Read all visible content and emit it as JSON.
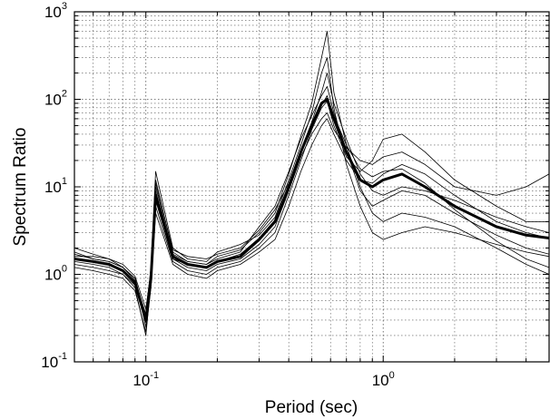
{
  "chart_data": {
    "type": "line",
    "title": "",
    "xlabel": "Period (sec)",
    "ylabel": "Spectrum Ratio",
    "xscale": "log",
    "yscale": "log",
    "xlim": [
      0.05,
      5
    ],
    "ylim": [
      0.1,
      1000
    ],
    "grid": true,
    "legend": "none",
    "x_ticks": [
      {
        "base": "10",
        "exp": "-1",
        "value": 0.1
      },
      {
        "base": "10",
        "exp": "0",
        "value": 1
      }
    ],
    "y_ticks": [
      {
        "base": "10",
        "exp": "-1",
        "value": 0.1
      },
      {
        "base": "10",
        "exp": "0",
        "value": 1
      },
      {
        "base": "10",
        "exp": "1",
        "value": 10
      },
      {
        "base": "10",
        "exp": "2",
        "value": 100
      },
      {
        "base": "10",
        "exp": "3",
        "value": 1000
      }
    ],
    "mean_series": {
      "style": "thick",
      "x": [
        0.05,
        0.06,
        0.07,
        0.08,
        0.09,
        0.1,
        0.105,
        0.11,
        0.13,
        0.15,
        0.18,
        0.2,
        0.25,
        0.3,
        0.35,
        0.4,
        0.45,
        0.5,
        0.55,
        0.58,
        0.62,
        0.7,
        0.8,
        0.9,
        1.0,
        1.2,
        1.5,
        2.0,
        3.0,
        4.0,
        5.0
      ],
      "y": [
        1.5,
        1.4,
        1.3,
        1.1,
        0.8,
        0.3,
        0.9,
        8.0,
        1.6,
        1.3,
        1.2,
        1.4,
        1.6,
        2.5,
        4.0,
        10.0,
        25.0,
        50.0,
        90.0,
        100.0,
        60.0,
        25.0,
        12.0,
        10.0,
        12.0,
        14.0,
        10.0,
        6.0,
        3.5,
        2.8,
        2.6
      ]
    },
    "individual_series_y": [
      [
        1.8,
        1.5,
        1.4,
        1.2,
        0.9,
        0.25,
        1.0,
        12.0,
        1.8,
        1.4,
        1.3,
        1.6,
        1.9,
        3.0,
        5.0,
        14.0,
        38.0,
        90.0,
        300.0,
        600.0,
        120.0,
        30.0,
        10.0,
        5.0,
        4.0,
        5.0,
        4.5,
        3.5,
        2.0,
        1.3,
        1.0
      ],
      [
        1.3,
        1.2,
        1.1,
        1.0,
        0.7,
        0.2,
        0.8,
        6.0,
        1.4,
        1.1,
        1.0,
        1.2,
        1.4,
        2.0,
        3.0,
        8.0,
        20.0,
        45.0,
        80.0,
        95.0,
        50.0,
        22.0,
        15.0,
        20.0,
        35.0,
        40.0,
        25.0,
        12.0,
        6.0,
        4.0,
        4.0
      ],
      [
        1.6,
        1.6,
        1.5,
        1.2,
        0.85,
        0.35,
        1.2,
        15.0,
        2.0,
        1.5,
        1.4,
        1.8,
        2.2,
        2.8,
        4.5,
        12.0,
        30.0,
        70.0,
        200.0,
        300.0,
        80.0,
        18.0,
        6.0,
        3.0,
        2.5,
        3.0,
        3.5,
        3.0,
        2.2,
        1.8,
        1.6
      ],
      [
        1.4,
        1.3,
        1.2,
        1.0,
        0.75,
        0.28,
        0.9,
        9.0,
        1.5,
        1.2,
        1.1,
        1.3,
        1.5,
        2.2,
        3.5,
        9.0,
        22.0,
        40.0,
        60.0,
        70.0,
        45.0,
        28.0,
        20.0,
        18.0,
        22.0,
        25.0,
        18.0,
        10.0,
        8.0,
        10.0,
        14.0
      ],
      [
        2.0,
        1.7,
        1.5,
        1.3,
        0.95,
        0.4,
        1.1,
        10.0,
        1.7,
        1.4,
        1.3,
        1.5,
        1.8,
        3.5,
        6.0,
        15.0,
        35.0,
        65.0,
        110.0,
        140.0,
        70.0,
        26.0,
        9.0,
        6.0,
        7.0,
        9.0,
        8.0,
        5.0,
        2.8,
        2.0,
        1.7
      ],
      [
        1.2,
        1.1,
        1.0,
        0.9,
        0.65,
        0.22,
        0.7,
        5.0,
        1.3,
        1.0,
        0.9,
        1.1,
        1.3,
        1.8,
        2.5,
        6.0,
        15.0,
        30.0,
        50.0,
        60.0,
        40.0,
        20.0,
        12.0,
        11.0,
        14.0,
        18.0,
        14.0,
        8.0,
        4.0,
        3.0,
        2.6
      ],
      [
        1.7,
        1.5,
        1.4,
        1.2,
        0.9,
        0.32,
        1.0,
        11.0,
        1.9,
        1.6,
        1.5,
        1.7,
        2.0,
        3.2,
        5.5,
        11.0,
        26.0,
        55.0,
        120.0,
        200.0,
        90.0,
        35.0,
        14.0,
        9.0,
        8.0,
        10.0,
        9.0,
        7.0,
        4.5,
        3.5,
        3.0
      ],
      [
        1.5,
        1.4,
        1.3,
        1.1,
        0.8,
        0.3,
        0.95,
        7.0,
        1.5,
        1.3,
        1.2,
        1.4,
        1.7,
        2.6,
        4.2,
        10.0,
        24.0,
        48.0,
        85.0,
        110.0,
        65.0,
        30.0,
        16.0,
        13.0,
        15.0,
        16.0,
        11.0,
        5.5,
        2.4,
        1.5,
        1.2
      ]
    ]
  }
}
